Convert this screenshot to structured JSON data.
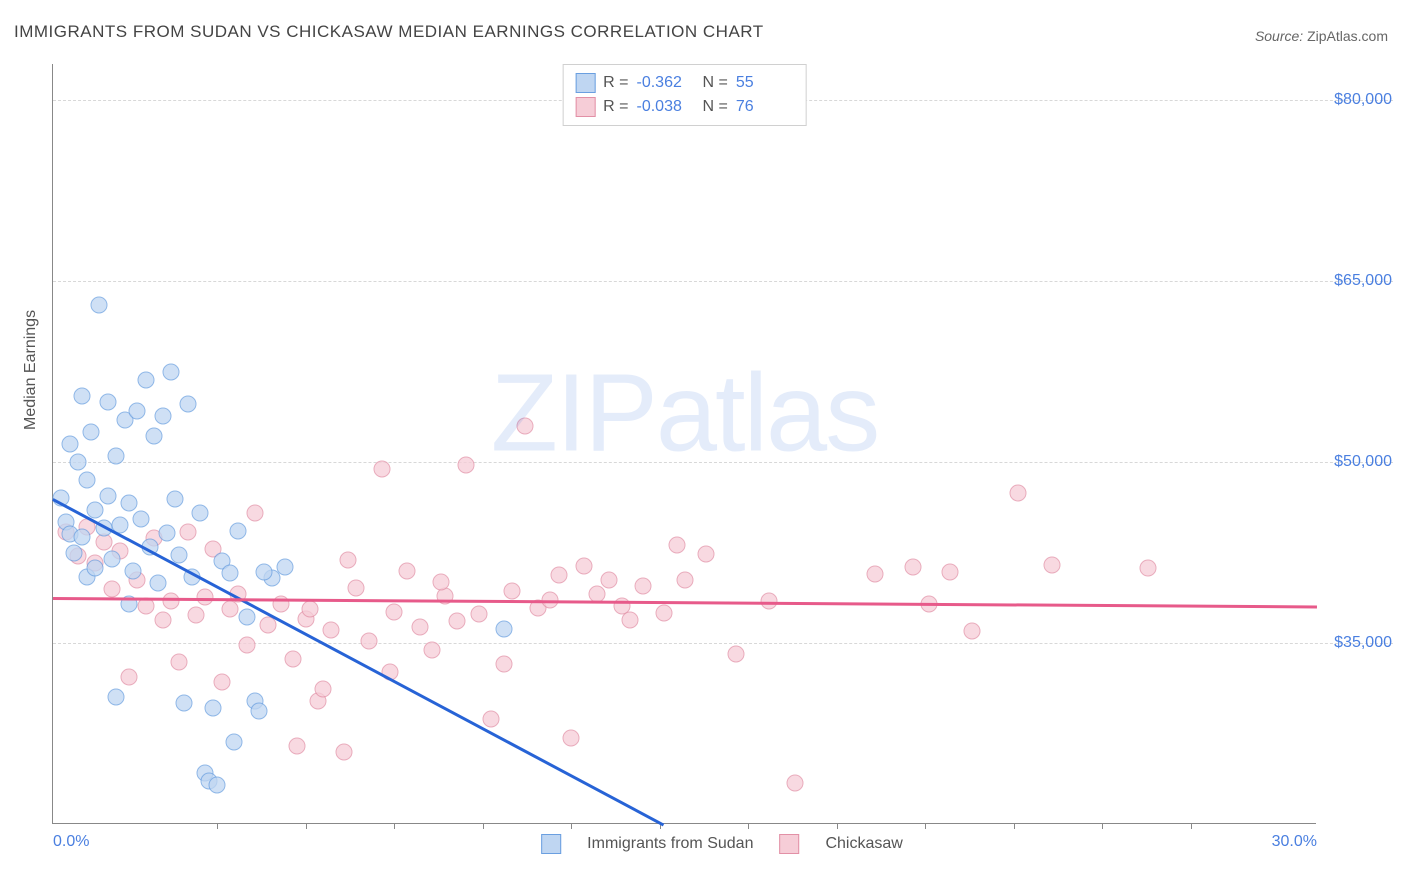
{
  "title": "IMMIGRANTS FROM SUDAN VS CHICKASAW MEDIAN EARNINGS CORRELATION CHART",
  "source": {
    "label": "Source:",
    "name": "ZipAtlas.com"
  },
  "watermark": {
    "bold": "ZIP",
    "light": "atlas"
  },
  "chart": {
    "type": "scatter",
    "y_axis_title": "Median Earnings",
    "x_range": [
      0,
      30
    ],
    "y_range": [
      20000,
      83000
    ],
    "x_ticks": [
      {
        "value": 0,
        "label": "0.0%"
      },
      {
        "value": 30,
        "label": "30.0%"
      }
    ],
    "x_minor_ticks": [
      3.9,
      6.0,
      8.1,
      10.2,
      12.3,
      14.4,
      16.5,
      18.6,
      20.7,
      22.8,
      24.9,
      27.0
    ],
    "y_gridlines": [
      {
        "value": 35000,
        "label": "$35,000"
      },
      {
        "value": 50000,
        "label": "$50,000"
      },
      {
        "value": 65000,
        "label": "$65,000"
      },
      {
        "value": 80000,
        "label": "$80,000"
      }
    ],
    "series": [
      {
        "id": "sudan",
        "label": "Immigrants from Sudan",
        "R": "-0.362",
        "N": "55",
        "point_fill": "#bfd6f2",
        "point_stroke": "#6a9fe0",
        "line_color": "#2763d6",
        "trend": {
          "x1": 0,
          "y1": 47000,
          "x2": 14.5,
          "y2": 20000
        },
        "points": [
          [
            0.2,
            47000
          ],
          [
            0.3,
            45000
          ],
          [
            0.4,
            51500
          ],
          [
            0.4,
            44000
          ],
          [
            0.5,
            42500
          ],
          [
            0.6,
            50000
          ],
          [
            0.7,
            55500
          ],
          [
            0.7,
            43800
          ],
          [
            0.8,
            48500
          ],
          [
            0.8,
            40500
          ],
          [
            0.9,
            52500
          ],
          [
            1.0,
            46000
          ],
          [
            1.0,
            41200
          ],
          [
            1.1,
            63000
          ],
          [
            1.2,
            44500
          ],
          [
            1.3,
            55000
          ],
          [
            1.3,
            47200
          ],
          [
            1.4,
            42000
          ],
          [
            1.5,
            50500
          ],
          [
            1.5,
            30500
          ],
          [
            1.6,
            44800
          ],
          [
            1.7,
            53500
          ],
          [
            1.8,
            46600
          ],
          [
            1.8,
            38200
          ],
          [
            1.9,
            41000
          ],
          [
            2.0,
            54200
          ],
          [
            2.1,
            45300
          ],
          [
            2.2,
            56800
          ],
          [
            2.3,
            43000
          ],
          [
            2.4,
            52200
          ],
          [
            2.5,
            40000
          ],
          [
            2.6,
            53800
          ],
          [
            2.7,
            44100
          ],
          [
            2.8,
            57500
          ],
          [
            2.9,
            46900
          ],
          [
            3.0,
            42300
          ],
          [
            3.1,
            30000
          ],
          [
            3.2,
            54800
          ],
          [
            3.3,
            40500
          ],
          [
            3.5,
            45800
          ],
          [
            3.6,
            24200
          ],
          [
            3.7,
            23600
          ],
          [
            3.8,
            29600
          ],
          [
            3.9,
            23200
          ],
          [
            4.0,
            41800
          ],
          [
            4.2,
            40800
          ],
          [
            4.4,
            44300
          ],
          [
            4.6,
            37200
          ],
          [
            4.8,
            30200
          ],
          [
            5.2,
            40400
          ],
          [
            5.5,
            41300
          ],
          [
            4.3,
            26800
          ],
          [
            4.9,
            29400
          ],
          [
            10.7,
            36200
          ],
          [
            5.0,
            40900
          ]
        ]
      },
      {
        "id": "chickasaw",
        "label": "Chickasaw",
        "R": "-0.038",
        "N": "76",
        "point_fill": "#f6cdd7",
        "point_stroke": "#e290a6",
        "line_color": "#e75a8a",
        "trend": {
          "x1": 0,
          "y1": 38800,
          "x2": 30,
          "y2": 38100
        },
        "points": [
          [
            0.3,
            44200
          ],
          [
            0.6,
            42200
          ],
          [
            0.8,
            44600
          ],
          [
            1.0,
            41600
          ],
          [
            1.2,
            43400
          ],
          [
            1.4,
            39500
          ],
          [
            1.6,
            42600
          ],
          [
            1.8,
            32200
          ],
          [
            2.0,
            40200
          ],
          [
            2.2,
            38100
          ],
          [
            2.4,
            43700
          ],
          [
            2.6,
            36900
          ],
          [
            2.8,
            38500
          ],
          [
            3.0,
            33400
          ],
          [
            3.2,
            44200
          ],
          [
            3.4,
            37300
          ],
          [
            3.6,
            38800
          ],
          [
            3.8,
            42800
          ],
          [
            4.0,
            31800
          ],
          [
            4.2,
            37800
          ],
          [
            4.4,
            39100
          ],
          [
            4.6,
            34800
          ],
          [
            4.8,
            45800
          ],
          [
            5.1,
            36500
          ],
          [
            5.4,
            38200
          ],
          [
            5.7,
            33700
          ],
          [
            6.0,
            37000
          ],
          [
            6.3,
            30200
          ],
          [
            6.6,
            36100
          ],
          [
            6.9,
            26000
          ],
          [
            7.2,
            39600
          ],
          [
            7.5,
            35200
          ],
          [
            7.8,
            49400
          ],
          [
            8.1,
            37600
          ],
          [
            8.4,
            41000
          ],
          [
            8.7,
            36300
          ],
          [
            9.0,
            34400
          ],
          [
            9.3,
            38900
          ],
          [
            9.6,
            36800
          ],
          [
            10.1,
            37400
          ],
          [
            10.4,
            28700
          ],
          [
            10.7,
            33300
          ],
          [
            10.9,
            39300
          ],
          [
            11.2,
            53000
          ],
          [
            11.5,
            37900
          ],
          [
            12.0,
            40600
          ],
          [
            12.3,
            27100
          ],
          [
            12.6,
            41400
          ],
          [
            12.9,
            39100
          ],
          [
            13.2,
            40200
          ],
          [
            13.5,
            38100
          ],
          [
            14.0,
            39700
          ],
          [
            14.5,
            37500
          ],
          [
            14.8,
            43100
          ],
          [
            15.5,
            42400
          ],
          [
            16.2,
            34100
          ],
          [
            17.0,
            38450
          ],
          [
            17.6,
            23400
          ],
          [
            19.5,
            40700
          ],
          [
            20.4,
            41300
          ],
          [
            20.8,
            38200
          ],
          [
            21.3,
            40900
          ],
          [
            21.8,
            36000
          ],
          [
            22.9,
            47400
          ],
          [
            23.7,
            41500
          ],
          [
            26.0,
            41200
          ],
          [
            9.8,
            49800
          ],
          [
            5.8,
            26500
          ],
          [
            6.4,
            31200
          ],
          [
            6.1,
            37800
          ],
          [
            8.0,
            32600
          ],
          [
            9.2,
            40100
          ],
          [
            7.0,
            41900
          ],
          [
            11.8,
            38600
          ],
          [
            13.7,
            36900
          ],
          [
            15.0,
            40200
          ]
        ]
      }
    ]
  },
  "colors": {
    "title_text": "#444444",
    "axis_text": "#555555",
    "tick_text": "#4a7fe0",
    "grid": "#d8d8d8",
    "border": "#888888"
  }
}
